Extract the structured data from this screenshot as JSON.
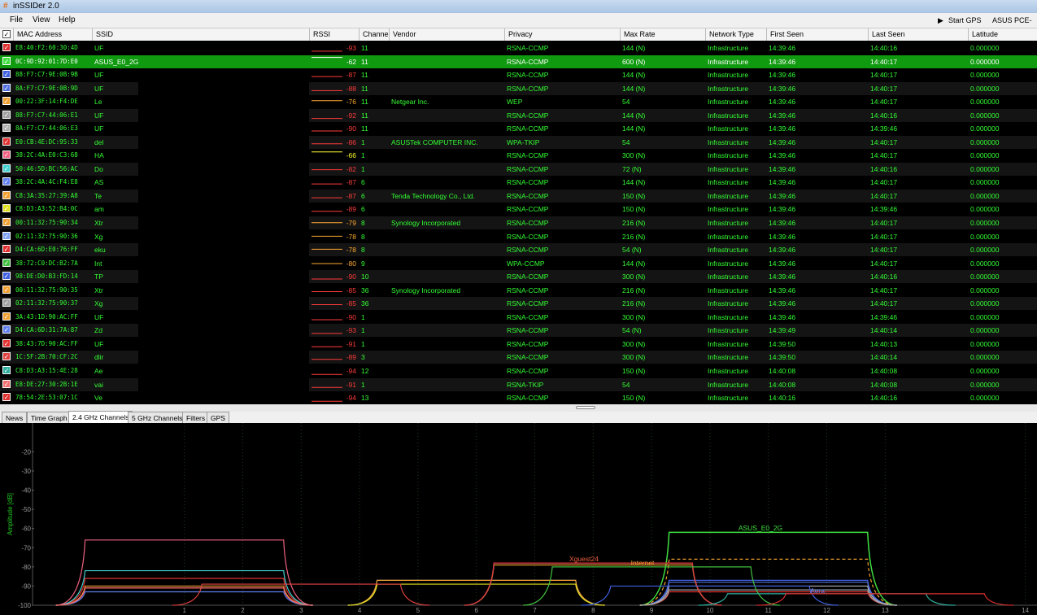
{
  "window": {
    "title": "inSSIDer 2.0",
    "menu": [
      "File",
      "View",
      "Help"
    ],
    "start_gps": "Start GPS",
    "adapter": "ASUS PCE-AC"
  },
  "table": {
    "columns": [
      "MAC Address",
      "SSID",
      "RSSI",
      "Channel",
      "Vendor",
      "Privacy",
      "Max Rate",
      "Network Type",
      "First Seen",
      "Last Seen",
      "Latitude"
    ],
    "selected_row": 1,
    "colors": [
      "#e03030",
      "#40e040",
      "#4060e0",
      "#5070e0",
      "#f0a030",
      "#a0a0a0",
      "#b0b0b0",
      "#e03030",
      "#f06080",
      "#40d0d0",
      "#6080f0",
      "#f0a030",
      "#e0e020",
      "#f0a030",
      "#80a0f0",
      "#e03030",
      "#40c040",
      "#4060e0",
      "#f0a030",
      "#a0a0a0",
      "#f0a030",
      "#6080f0",
      "#e03030",
      "#e04040",
      "#30b0a0",
      "#f07070",
      "#e03030"
    ],
    "rows": [
      [
        "E8:40:F2:60:30:4D",
        "UF",
        -93,
        11,
        null,
        "RSNA-CCMP",
        "144 (N)",
        "Infrastructure",
        "14:39:46",
        "14:40:16",
        "0.000000"
      ],
      [
        "0C:9D:92:01:7D:E0",
        "ASUS_E0_2G",
        -62,
        11,
        null,
        "RSNA-CCMP",
        "600 (N)",
        "Infrastructure",
        "14:39:46",
        "14:40:17",
        "0.000000"
      ],
      [
        "88:F7:C7:9E:0B:9B",
        "UF",
        -87,
        11,
        null,
        "RSNA-CCMP",
        "144 (N)",
        "Infrastructure",
        "14:39:46",
        "14:40:17",
        "0.000000"
      ],
      [
        "8A:F7:C7:9E:0B:9D",
        "UF",
        -88,
        11,
        null,
        "RSNA-CCMP",
        "144 (N)",
        "Infrastructure",
        "14:39:46",
        "14:40:17",
        "0.000000"
      ],
      [
        "00:22:3F:14:F4:DE",
        "Le",
        -76,
        11,
        "Netgear Inc.",
        "WEP",
        "54",
        "Infrastructure",
        "14:39:46",
        "14:40:17",
        "0.000000"
      ],
      [
        "88:F7:C7:44:06:E1",
        "UF",
        -92,
        11,
        null,
        "RSNA-CCMP",
        "144 (N)",
        "Infrastructure",
        "14:39:46",
        "14:40:16",
        "0.000000"
      ],
      [
        "8A:F7:C7:44:06:E3",
        "UF",
        -90,
        11,
        null,
        "RSNA-CCMP",
        "144 (N)",
        "Infrastructure",
        "14:39:46",
        "14:39:46",
        "0.000000"
      ],
      [
        "E0:CB:4E:DC:95:33",
        "del",
        -86,
        1,
        "ASUSTek COMPUTER INC.",
        "WPA-TKIP",
        "54",
        "Infrastructure",
        "14:39:46",
        "14:40:17",
        "0.000000"
      ],
      [
        "38:2C:4A:E0:C3:68",
        "HA",
        -66,
        1,
        null,
        "RSNA-CCMP",
        "300 (N)",
        "Infrastructure",
        "14:39:46",
        "14:40:17",
        "0.000000"
      ],
      [
        "50:46:5D:BC:56:AC",
        "Do",
        -82,
        1,
        null,
        "RSNA-CCMP",
        "72 (N)",
        "Infrastructure",
        "14:39:46",
        "14:40:16",
        "0.000000"
      ],
      [
        "38:2C:4A:4C:F4:E8",
        "AS",
        -87,
        6,
        null,
        "RSNA-CCMP",
        "144 (N)",
        "Infrastructure",
        "14:39:46",
        "14:40:17",
        "0.000000"
      ],
      [
        "C8:3A:35:27:39:A8",
        "Te",
        -87,
        6,
        "Tenda Technology Co., Ltd.",
        "RSNA-CCMP",
        "150 (N)",
        "Infrastructure",
        "14:39:46",
        "14:40:17",
        "0.000000"
      ],
      [
        "C8:D3:A3:52:B4:0C",
        "am",
        -89,
        6,
        null,
        "RSNA-CCMP",
        "150 (N)",
        "Infrastructure",
        "14:39:46",
        "14:39:46",
        "0.000000"
      ],
      [
        "00:11:32:75:90:34",
        "Xtr",
        -79,
        8,
        "Synology Incorporated",
        "RSNA-CCMP",
        "216 (N)",
        "Infrastructure",
        "14:39:46",
        "14:40:17",
        "0.000000"
      ],
      [
        "02:11:32:75:90:36",
        "Xg",
        -78,
        8,
        null,
        "RSNA-CCMP",
        "216 (N)",
        "Infrastructure",
        "14:39:46",
        "14:40:17",
        "0.000000"
      ],
      [
        "D4:CA:6D:E0:76:FF",
        "eku",
        -78,
        8,
        null,
        "RSNA-CCMP",
        "54 (N)",
        "Infrastructure",
        "14:39:46",
        "14:40:17",
        "0.000000"
      ],
      [
        "38:72:C0:DC:B2:7A",
        "Int",
        -80,
        9,
        null,
        "WPA-CCMP",
        "144 (N)",
        "Infrastructure",
        "14:39:46",
        "14:40:17",
        "0.000000"
      ],
      [
        "98:DE:D0:B3:FD:14",
        "TP",
        -90,
        10,
        null,
        "RSNA-CCMP",
        "300 (N)",
        "Infrastructure",
        "14:39:46",
        "14:40:16",
        "0.000000"
      ],
      [
        "00:11:32:75:90:35",
        "Xtr",
        -85,
        36,
        "Synology Incorporated",
        "RSNA-CCMP",
        "216 (N)",
        "Infrastructure",
        "14:39:46",
        "14:40:17",
        "0.000000"
      ],
      [
        "02:11:32:75:90:37",
        "Xg",
        -85,
        36,
        null,
        "RSNA-CCMP",
        "216 (N)",
        "Infrastructure",
        "14:39:46",
        "14:40:17",
        "0.000000"
      ],
      [
        "3A:43:1D:90:AC:FF",
        "UF",
        -90,
        1,
        null,
        "RSNA-CCMP",
        "300 (N)",
        "Infrastructure",
        "14:39:46",
        "14:39:46",
        "0.000000"
      ],
      [
        "D4:CA:6D:31:7A:87",
        "Zd",
        -93,
        1,
        null,
        "RSNA-CCMP",
        "54 (N)",
        "Infrastructure",
        "14:39:49",
        "14:40:14",
        "0.000000"
      ],
      [
        "38:43:7D:90:AC:FF",
        "UF",
        -91,
        1,
        null,
        "RSNA-CCMP",
        "300 (N)",
        "Infrastructure",
        "14:39:50",
        "14:40:13",
        "0.000000"
      ],
      [
        "1C:5F:2B:70:CF:2C",
        "dlir",
        -89,
        3,
        null,
        "RSNA-CCMP",
        "300 (N)",
        "Infrastructure",
        "14:39:50",
        "14:40:14",
        "0.000000"
      ],
      [
        "C8:D3:A3:15:4E:28",
        "Ae",
        -94,
        12,
        null,
        "RSNA-CCMP",
        "150 (N)",
        "Infrastructure",
        "14:40:08",
        "14:40:08",
        "0.000000"
      ],
      [
        "E8:DE:27:30:2B:1E",
        "vai",
        -91,
        1,
        null,
        "RSNA-TKIP",
        "54",
        "Infrastructure",
        "14:40:08",
        "14:40:08",
        "0.000000"
      ],
      [
        "78:54:2E:53:07:1C",
        "Ve",
        -94,
        13,
        null,
        "RSNA-CCMP",
        "150 (N)",
        "Infrastructure",
        "14:40:16",
        "14:40:16",
        "0.000000"
      ]
    ]
  },
  "tabs": [
    "News",
    "Time Graph",
    "2.4 GHz Channels",
    "5 GHz Channels",
    "Filters",
    "GPS"
  ],
  "active_tab": 2,
  "chart_data": {
    "type": "channel-spectrum",
    "y_label": "Amplitude [dB]",
    "ylim": [
      -5,
      -100
    ],
    "yticks": [
      -20,
      -30,
      -40,
      -50,
      -60,
      -70,
      -80,
      -90,
      -100
    ],
    "xlim": [
      2399,
      2485
    ],
    "xticks": [
      {
        "value": 2412,
        "label": "1"
      },
      {
        "value": 2417,
        "label": "2"
      },
      {
        "value": 2422,
        "label": "3"
      },
      {
        "value": 2427,
        "label": "4"
      },
      {
        "value": 2432,
        "label": "5"
      },
      {
        "value": 2437,
        "label": "6"
      },
      {
        "value": 2442,
        "label": "7"
      },
      {
        "value": 2447,
        "label": "8"
      },
      {
        "value": 2452,
        "label": "9"
      },
      {
        "value": 2457,
        "label": "10"
      },
      {
        "value": 2462,
        "label": "11"
      },
      {
        "value": 2467,
        "label": "12"
      },
      {
        "value": 2472,
        "label": "13"
      },
      {
        "value": 2484,
        "label": "14"
      }
    ],
    "annotations": [
      "ASUS_E0_2G",
      "Xguest24",
      "Internet",
      "Aera"
    ]
  }
}
